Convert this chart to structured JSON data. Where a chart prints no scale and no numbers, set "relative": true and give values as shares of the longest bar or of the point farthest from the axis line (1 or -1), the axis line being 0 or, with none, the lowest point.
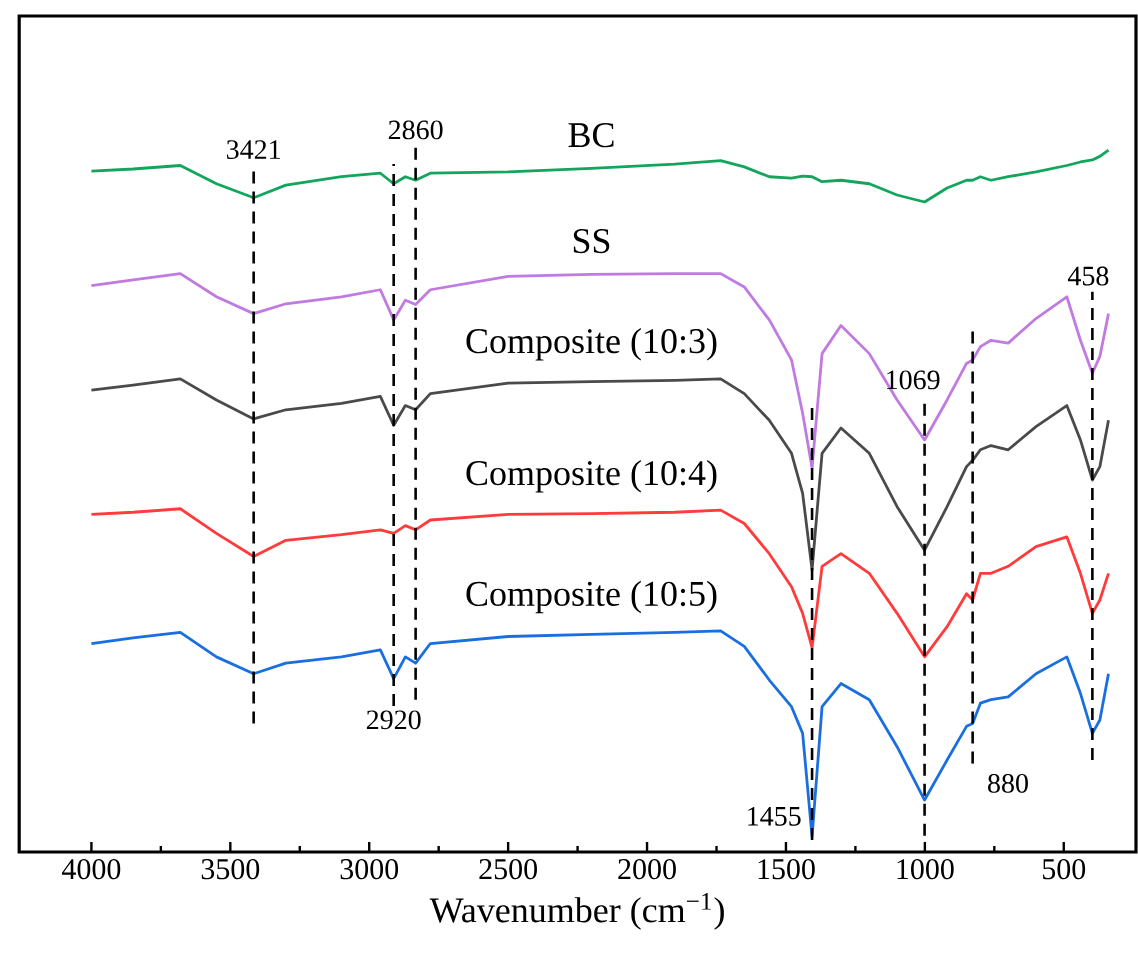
{
  "chart_data": {
    "type": "line",
    "relative": true,
    "xlabel": "Wavenumber (cm$^{−1}$)",
    "xlim": [
      4260,
      240
    ],
    "xticks": [
      4000,
      3500,
      3000,
      2500,
      2000,
      1500,
      1000,
      500
    ],
    "x": [
      4000,
      3850,
      3680,
      3550,
      3416,
      3300,
      3100,
      2960,
      2912,
      2870,
      2833,
      2780,
      2500,
      2200,
      1900,
      1735,
      1650,
      1560,
      1480,
      1440,
      1406,
      1370,
      1302,
      1200,
      1100,
      1001,
      920,
      850,
      828,
      800,
      762,
      700,
      600,
      489,
      440,
      397,
      370,
      339
    ],
    "series": [
      {
        "name": "BC",
        "color": "#12a55c",
        "values": [
          0.97,
          0.973,
          0.978,
          0.952,
          0.932,
          0.95,
          0.962,
          0.967,
          0.952,
          0.962,
          0.957,
          0.967,
          0.969,
          0.974,
          0.98,
          0.985,
          0.976,
          0.962,
          0.96,
          0.963,
          0.962,
          0.955,
          0.957,
          0.952,
          0.936,
          0.926,
          0.946,
          0.957,
          0.957,
          0.962,
          0.957,
          0.962,
          0.969,
          0.978,
          0.983,
          0.986,
          0.991,
          1.0
        ]
      },
      {
        "name": "SS",
        "color": "#c07ae0",
        "values": [
          0.807,
          0.815,
          0.824,
          0.791,
          0.767,
          0.781,
          0.791,
          0.801,
          0.758,
          0.786,
          0.78,
          0.801,
          0.82,
          0.823,
          0.824,
          0.824,
          0.805,
          0.758,
          0.701,
          0.625,
          0.547,
          0.71,
          0.75,
          0.71,
          0.644,
          0.587,
          0.644,
          0.696,
          0.701,
          0.72,
          0.729,
          0.725,
          0.76,
          0.791,
          0.729,
          0.682,
          0.706,
          0.767
        ]
      },
      {
        "name": "Composite (10:3)",
        "color": "#4a4a4a",
        "values": [
          0.658,
          0.665,
          0.674,
          0.644,
          0.617,
          0.63,
          0.639,
          0.649,
          0.608,
          0.636,
          0.63,
          0.653,
          0.668,
          0.67,
          0.672,
          0.674,
          0.653,
          0.615,
          0.568,
          0.511,
          0.402,
          0.568,
          0.604,
          0.568,
          0.492,
          0.43,
          0.492,
          0.549,
          0.558,
          0.573,
          0.579,
          0.573,
          0.606,
          0.636,
          0.587,
          0.53,
          0.549,
          0.615
        ]
      },
      {
        "name": "Composite (10:4)",
        "color": "#ff3b3b",
        "values": [
          0.481,
          0.484,
          0.489,
          0.454,
          0.421,
          0.444,
          0.452,
          0.459,
          0.454,
          0.465,
          0.459,
          0.473,
          0.481,
          0.482,
          0.484,
          0.487,
          0.468,
          0.425,
          0.378,
          0.34,
          0.291,
          0.407,
          0.425,
          0.397,
          0.34,
          0.278,
          0.321,
          0.368,
          0.359,
          0.397,
          0.397,
          0.407,
          0.435,
          0.449,
          0.397,
          0.34,
          0.359,
          0.397
        ]
      },
      {
        "name": "Composite (10:5)",
        "color": "#1a6fe0",
        "values": [
          0.297,
          0.305,
          0.313,
          0.278,
          0.254,
          0.269,
          0.278,
          0.288,
          0.247,
          0.278,
          0.269,
          0.297,
          0.307,
          0.31,
          0.313,
          0.315,
          0.293,
          0.245,
          0.207,
          0.169,
          0.022,
          0.207,
          0.24,
          0.217,
          0.15,
          0.074,
          0.131,
          0.179,
          0.183,
          0.212,
          0.217,
          0.221,
          0.254,
          0.278,
          0.226,
          0.169,
          0.188,
          0.254
        ]
      }
    ],
    "ref_lines": [
      {
        "axis": "x",
        "value": 3416,
        "line_style": "dashed",
        "color": "#000000"
      },
      {
        "axis": "x",
        "value": 2912,
        "line_style": "dashed",
        "color": "#000000"
      },
      {
        "axis": "x",
        "value": 2833,
        "line_style": "dashed",
        "color": "#000000"
      },
      {
        "axis": "x",
        "value": 1406,
        "line_style": "dashed",
        "color": "#000000"
      },
      {
        "axis": "x",
        "value": 1001,
        "line_style": "dashed",
        "color": "#000000"
      },
      {
        "axis": "x",
        "value": 828,
        "line_style": "dashed",
        "color": "#000000"
      },
      {
        "axis": "x",
        "value": 397,
        "line_style": "dashed",
        "color": "#000000"
      }
    ],
    "annotations": [
      "3421",
      "2920",
      "2860",
      "1455",
      "1069",
      "880",
      "458"
    ]
  }
}
